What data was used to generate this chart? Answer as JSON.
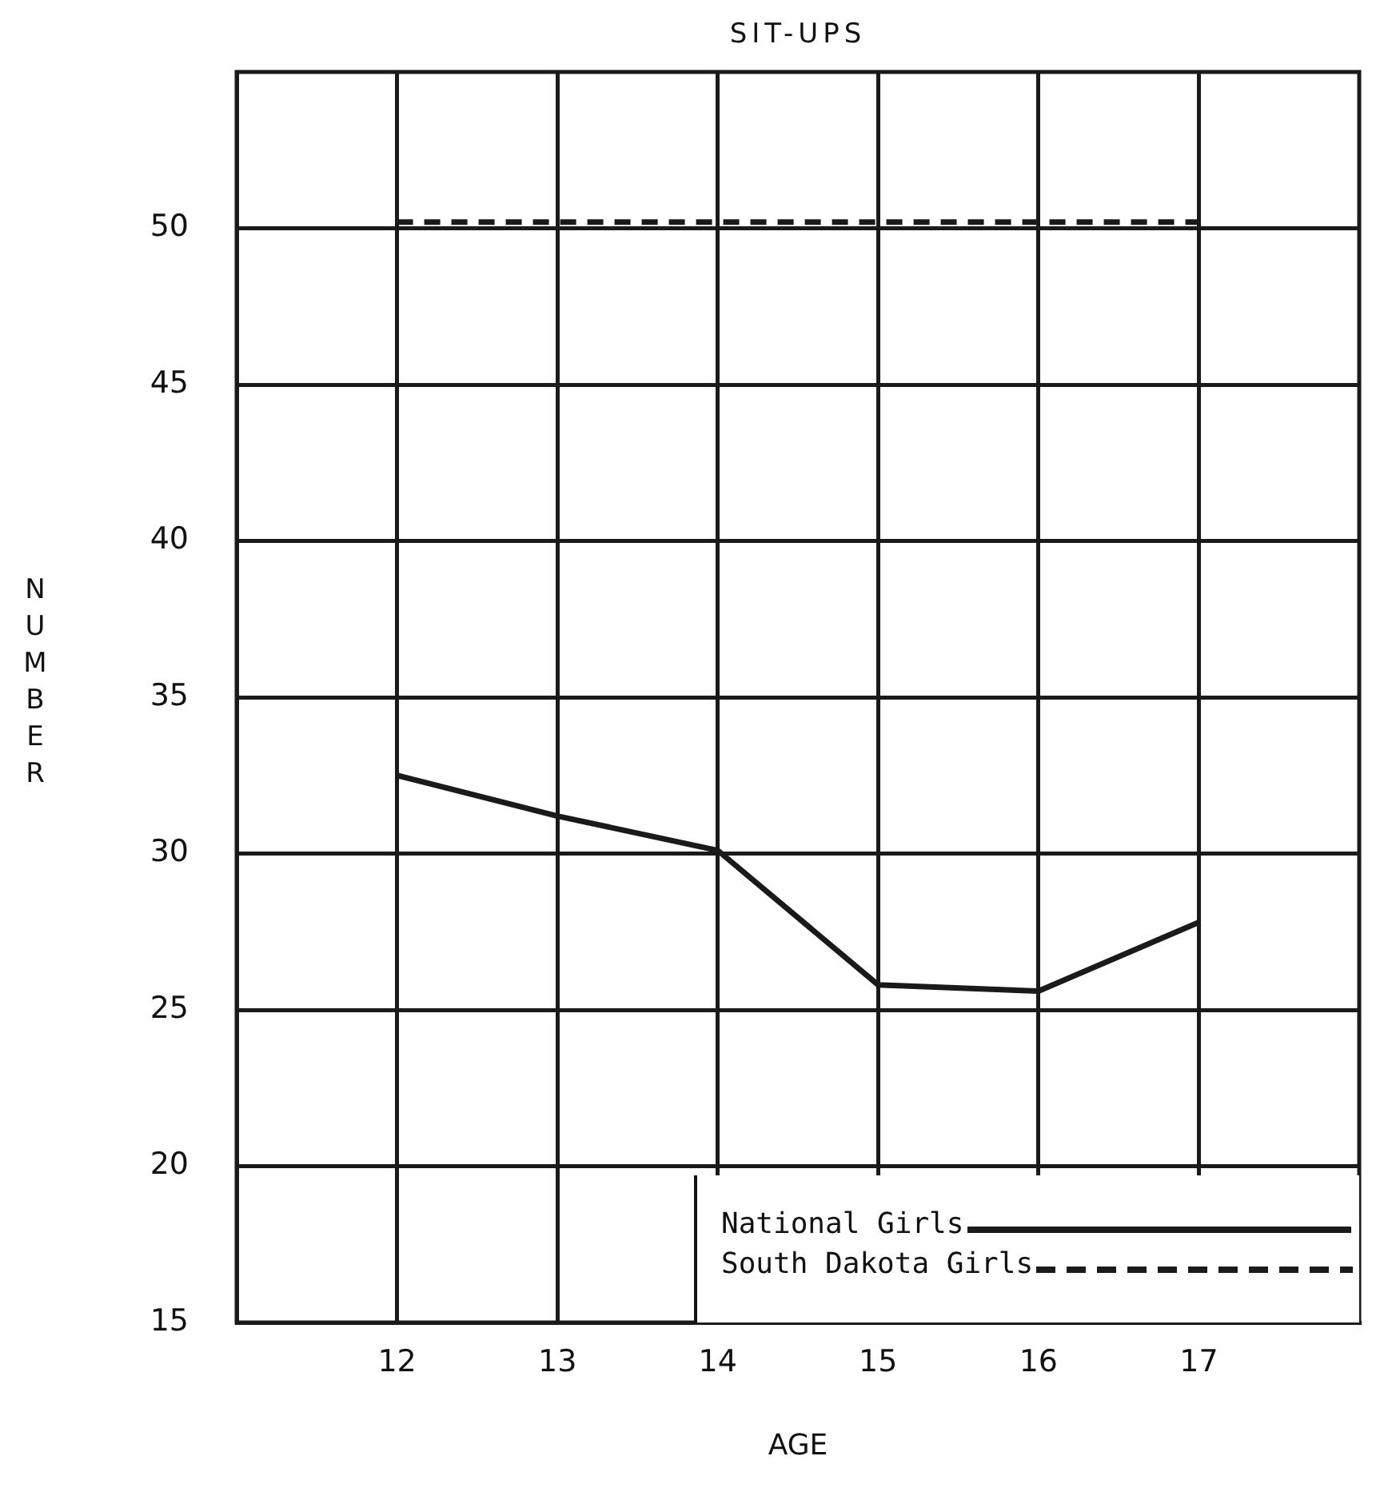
{
  "chart_data": {
    "type": "line",
    "title": "SIT-UPS",
    "xlabel": "AGE",
    "ylabel": "NUMBER",
    "x": [
      12,
      13,
      14,
      15,
      16,
      17
    ],
    "series": [
      {
        "name": "National Girls",
        "color": "#1a1a1a",
        "line_style": "solid",
        "values": [
          32.5,
          31.2,
          30.1,
          25.8,
          25.6,
          27.8
        ]
      },
      {
        "name": "South Dakota Girls",
        "color": "#1a1a1a",
        "line_style": "dashed",
        "values": [
          50.2,
          50.2,
          50.2,
          50.2,
          50.2,
          50.2
        ]
      }
    ],
    "xlim": [
      11,
      18
    ],
    "xticks": [
      12,
      13,
      14,
      15,
      16,
      17
    ],
    "ylim": [
      15,
      55
    ],
    "yticks": [
      15,
      20,
      25,
      30,
      35,
      40,
      45,
      50
    ],
    "grid": true,
    "legend": "bottom right",
    "marker": "none"
  }
}
